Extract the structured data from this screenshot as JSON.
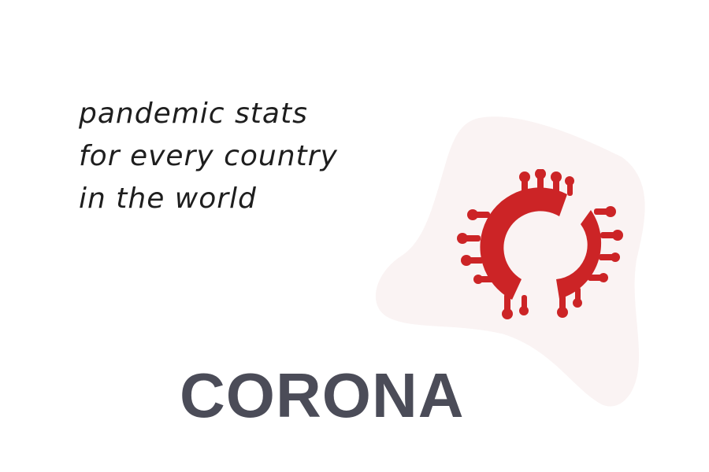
{
  "tagline": {
    "lines": [
      "pandemic stats",
      "for every country",
      "in the world"
    ]
  },
  "brand": {
    "name": "CORONA"
  },
  "icons": {
    "logo": "coronavirus-logo-icon",
    "background": "blob-shape"
  },
  "colors": {
    "accent": "#cc2426",
    "blob": "#faf3f3",
    "brand_text": "#4b4c58",
    "tagline_text": "#1e1e1e"
  }
}
